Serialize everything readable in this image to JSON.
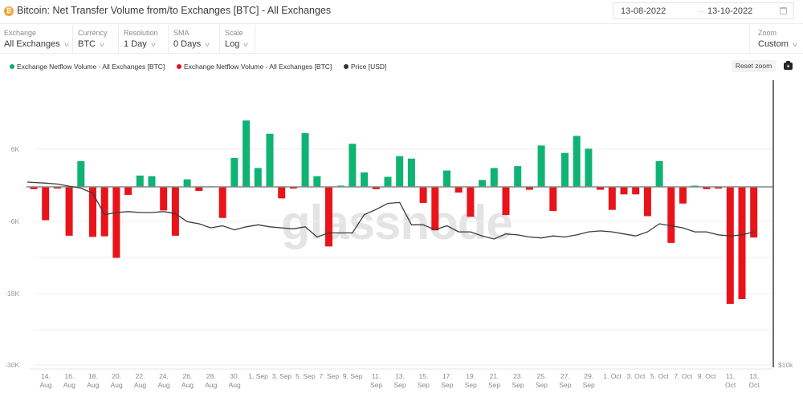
{
  "header": {
    "coin_icon": "bitcoin-icon",
    "coin_glyph": "₿",
    "title": "Bitcoin: Net Transfer Volume from/to Exchanges [BTC] - All Exchanges",
    "date_start": "13-08-2022",
    "date_arrow": "→",
    "date_end": "13-10-2022"
  },
  "controls": [
    {
      "label": "Exchange",
      "value": "All Exchanges"
    },
    {
      "label": "Currency",
      "value": "BTC"
    },
    {
      "label": "Resolution",
      "value": "1 Day"
    },
    {
      "label": "SMA",
      "value": "0 Days"
    },
    {
      "label": "Scale",
      "value": "Log"
    }
  ],
  "zoom_control": {
    "label": "Zoom",
    "value": "Custom"
  },
  "toolbar": {
    "reset_zoom": "Reset zoom",
    "camera_icon": "camera-icon"
  },
  "legend": [
    {
      "label": "Exchange Netflow Volume - All Exchanges [BTC]",
      "color": "#13a86e"
    },
    {
      "label": "Exchange Netflow Volume - All Exchanges [BTC]",
      "color": "#e8141a"
    },
    {
      "label": "Price [USD]",
      "color": "#333333"
    }
  ],
  "watermark": "glassnode",
  "colors": {
    "positive": "#0fb373",
    "negative": "#e8141a",
    "price": "#3a3a3a",
    "zero_line": "#888888",
    "grid": "#efefef"
  },
  "chart_data": {
    "type": "bar",
    "title": "Bitcoin: Net Transfer Volume from/to Exchanges [BTC] - All Exchanges",
    "xlabel": "",
    "ylabel": "Exchange Netflow Volume [BTC]",
    "y_ticks": [
      "6K",
      "-6K",
      "-18K",
      "-30K"
    ],
    "y_tick_values": [
      6000,
      -6000,
      -18000,
      -30000
    ],
    "right_axis_ticks": [
      "$10k"
    ],
    "x_tick_labels": [
      "14. Aug",
      "16. Aug",
      "18. Aug",
      "20. Aug",
      "22. Aug",
      "24. Aug",
      "26. Aug",
      "28. Aug",
      "30. Aug",
      "1. Sep",
      "3. Sep",
      "5. Sep",
      "7. Sep",
      "9. Sep",
      "11. Sep",
      "13. Sep",
      "15. Sep",
      "17. Sep",
      "19. Sep",
      "21. Sep",
      "23. Sep",
      "25. Sep",
      "27. Sep",
      "29. Sep",
      "1. Oct",
      "3. Oct",
      "5. Oct",
      "7. Oct",
      "9. Oct",
      "11. Oct",
      "13. Oct"
    ],
    "grid": true,
    "legend_position": "top-left",
    "categories": [
      "13 Aug",
      "14 Aug",
      "15 Aug",
      "16 Aug",
      "17 Aug",
      "18 Aug",
      "19 Aug",
      "20 Aug",
      "21 Aug",
      "22 Aug",
      "23 Aug",
      "24 Aug",
      "25 Aug",
      "26 Aug",
      "27 Aug",
      "28 Aug",
      "29 Aug",
      "30 Aug",
      "31 Aug",
      "1 Sep",
      "2 Sep",
      "3 Sep",
      "4 Sep",
      "5 Sep",
      "6 Sep",
      "7 Sep",
      "8 Sep",
      "9 Sep",
      "10 Sep",
      "11 Sep",
      "12 Sep",
      "13 Sep",
      "14 Sep",
      "15 Sep",
      "16 Sep",
      "17 Sep",
      "18 Sep",
      "19 Sep",
      "20 Sep",
      "21 Sep",
      "22 Sep",
      "23 Sep",
      "24 Sep",
      "25 Sep",
      "26 Sep",
      "27 Sep",
      "28 Sep",
      "29 Sep",
      "30 Sep",
      "1 Oct",
      "2 Oct",
      "3 Oct",
      "4 Oct",
      "5 Oct",
      "6 Oct",
      "7 Oct",
      "8 Oct",
      "9 Oct",
      "10 Oct",
      "11 Oct",
      "12 Oct",
      "13 Oct"
    ],
    "series": [
      {
        "name": "Exchange Netflow Volume - All Exchanges [BTC]",
        "values": [
          -400,
          -5800,
          -300,
          -8400,
          4100,
          -8600,
          -8500,
          -12100,
          -1400,
          1800,
          1700,
          -4100,
          -8400,
          1200,
          -700,
          100,
          -5400,
          4600,
          15800,
          3000,
          10100,
          -2000,
          -300,
          10300,
          1700,
          -10200,
          200,
          7200,
          2300,
          -400,
          1600,
          4900,
          4500,
          -2800,
          -7500,
          2600,
          -1000,
          -5200,
          1100,
          3000,
          -4900,
          3300,
          -500,
          6800,
          -4200,
          5400,
          9400,
          6100,
          -500,
          -4000,
          -1300,
          -1300,
          -5100,
          4100,
          -9600,
          -2900,
          200,
          -400,
          -300,
          -19800,
          -19000,
          -8700
        ]
      }
    ],
    "price_usd_approx": [
      24400,
      24300,
      24200,
      24000,
      23800,
      23300,
      21200,
      21400,
      21500,
      21400,
      21400,
      21500,
      21300,
      20500,
      20300,
      19900,
      20100,
      19700,
      20000,
      20200,
      20000,
      19900,
      19800,
      20000,
      19000,
      19400,
      19400,
      19400,
      21200,
      21700,
      22300,
      22400,
      20200,
      20200,
      19700,
      20100,
      19500,
      19500,
      19100,
      18800,
      19300,
      19200,
      19000,
      18900,
      19100,
      19000,
      19200,
      19500,
      19600,
      19500,
      19300,
      19100,
      19500,
      20300,
      20100,
      19900,
      19500,
      19500,
      19200,
      19100,
      19200,
      19500
    ],
    "ylim": [
      -30000,
      18000
    ]
  }
}
